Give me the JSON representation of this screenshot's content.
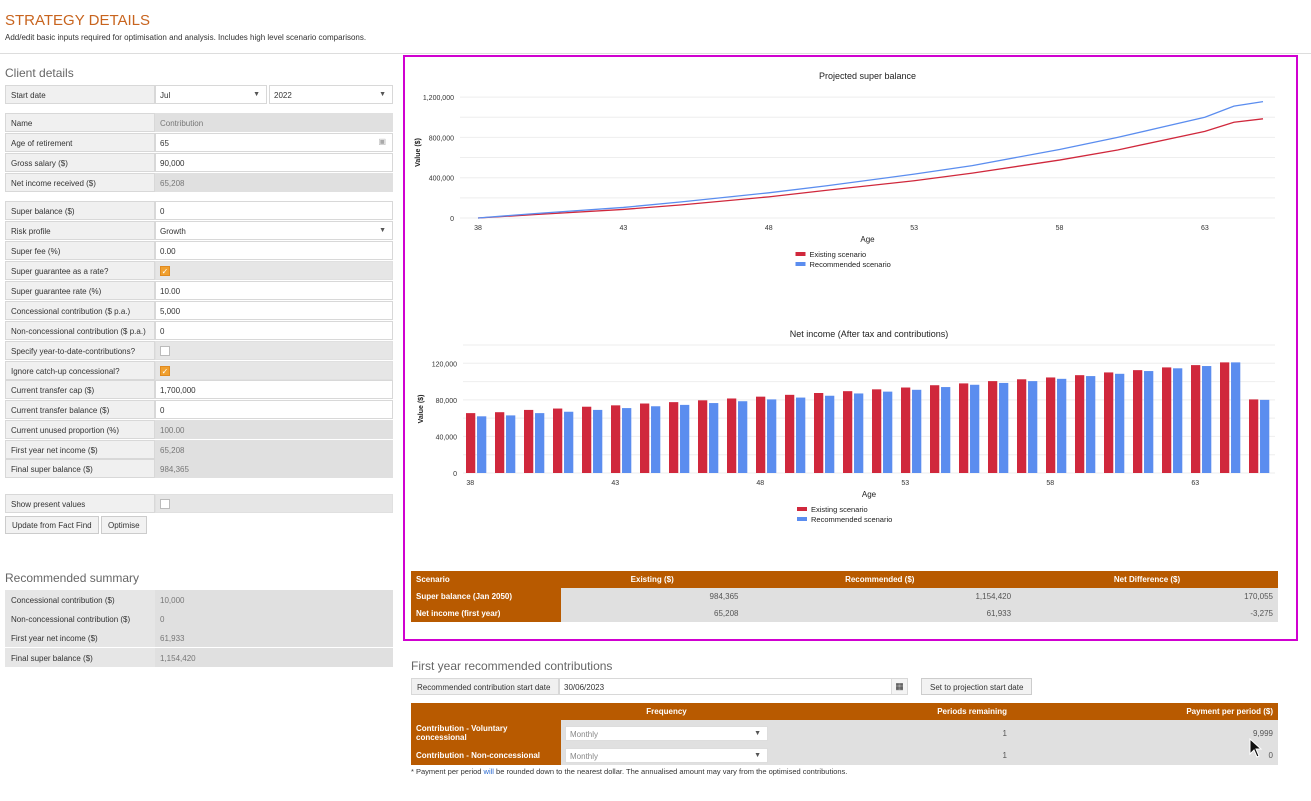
{
  "header": {
    "title": "STRATEGY DETAILS",
    "subtitle": "Add/edit basic inputs required for optimisation and analysis. Includes high level scenario comparisons."
  },
  "client": {
    "heading": "Client details",
    "start_date": {
      "label": "Start date",
      "month": "Jul",
      "year": "2022"
    },
    "rows": [
      {
        "label": "Name",
        "value": "Contribution",
        "type": "ro"
      },
      {
        "label": "Age of retirement",
        "value": "65",
        "type": "input"
      },
      {
        "label": "Gross salary ($)",
        "value": "90,000",
        "type": "input"
      },
      {
        "label": "Net income received ($)",
        "value": "65,208",
        "type": "ro"
      },
      {
        "label": "Super balance ($)",
        "value": "0",
        "type": "input"
      },
      {
        "label": "Risk profile",
        "value": "Growth",
        "type": "select"
      },
      {
        "label": "Super fee (%)",
        "value": "0.00",
        "type": "input"
      },
      {
        "label": "Super guarantee as a rate?",
        "value": true,
        "type": "check"
      },
      {
        "label": "Super guarantee rate (%)",
        "value": "10.00",
        "type": "input"
      },
      {
        "label": "Concessional contribution ($ p.a.)",
        "value": "5,000",
        "type": "input"
      },
      {
        "label": "Non-concessional contribution ($ p.a.)",
        "value": "0",
        "type": "input"
      },
      {
        "label": "Specify year-to-date-contributions?",
        "value": false,
        "type": "check"
      },
      {
        "label": "Ignore catch-up concessional?",
        "value": true,
        "type": "check"
      },
      {
        "label": "Current transfer cap ($)",
        "value": "1,700,000",
        "type": "input"
      },
      {
        "label": "Current transfer balance ($)",
        "value": "0",
        "type": "input"
      },
      {
        "label": "Current unused proportion (%)",
        "value": "100.00",
        "type": "ro"
      },
      {
        "label": "First year net income ($)",
        "value": "65,208",
        "type": "ro"
      },
      {
        "label": "Final super balance ($)",
        "value": "984,365",
        "type": "ro"
      },
      {
        "label": "Show present values",
        "value": false,
        "type": "check"
      }
    ],
    "buttons": {
      "update": "Update from Fact Find",
      "optimise": "Optimise"
    }
  },
  "recommended_summary": {
    "heading": "Recommended summary",
    "rows": [
      {
        "label": "Concessional contribution ($)",
        "value": "10,000"
      },
      {
        "label": "Non-concessional contribution ($)",
        "value": "0"
      },
      {
        "label": "First year net income ($)",
        "value": "61,933"
      },
      {
        "label": "Final super balance ($)",
        "value": "1,154,420"
      }
    ]
  },
  "chart_data": [
    {
      "type": "line",
      "title": "Projected super balance",
      "xlabel": "Age",
      "ylabel": "Value ($)",
      "xlim": [
        38,
        65
      ],
      "ylim": [
        0,
        1200000
      ],
      "xticks": [
        "38",
        "43",
        "48",
        "53",
        "58",
        "63"
      ],
      "yticks": [
        "0",
        "400,000",
        "800,000",
        "1,200,000"
      ],
      "legend": "bottom",
      "x": [
        38,
        40,
        43,
        45,
        48,
        50,
        53,
        55,
        58,
        60,
        63,
        64,
        65
      ],
      "series": [
        {
          "name": "Existing scenario",
          "color": "#d0283c",
          "values": [
            0,
            35000,
            85000,
            130000,
            210000,
            275000,
            370000,
            445000,
            575000,
            675000,
            860000,
            950000,
            984365
          ]
        },
        {
          "name": "Recommended scenario",
          "color": "#5b8def",
          "values": [
            0,
            45000,
            105000,
            160000,
            250000,
            320000,
            435000,
            520000,
            680000,
            800000,
            1000000,
            1110000,
            1154420
          ]
        }
      ]
    },
    {
      "type": "bar",
      "title": "Net income (After tax and contributions)",
      "xlabel": "Age",
      "ylabel": "Value ($)",
      "ylim": [
        0,
        140000
      ],
      "xticks": [
        "38",
        "43",
        "48",
        "53",
        "58",
        "63"
      ],
      "yticks": [
        "0",
        "40,000",
        "80,000",
        "120,000"
      ],
      "legend": "bottom",
      "categories": [
        38,
        39,
        40,
        41,
        42,
        43,
        44,
        45,
        46,
        47,
        48,
        49,
        50,
        51,
        52,
        53,
        54,
        55,
        56,
        57,
        58,
        59,
        60,
        61,
        62,
        63,
        64,
        65
      ],
      "series": [
        {
          "name": "Existing scenario",
          "color": "#d0283c",
          "values": [
            65500,
            66500,
            69000,
            70500,
            72500,
            74000,
            76000,
            77500,
            79500,
            81500,
            83500,
            85500,
            87500,
            89500,
            91500,
            93500,
            96000,
            98000,
            100500,
            102500,
            104500,
            107000,
            110000,
            112500,
            115500,
            118000,
            121000,
            80500
          ]
        },
        {
          "name": "Recommended scenario",
          "color": "#5b8def",
          "values": [
            62000,
            63000,
            65500,
            67000,
            69000,
            71000,
            73000,
            74500,
            76500,
            78500,
            80500,
            82500,
            84500,
            87000,
            89000,
            91000,
            94000,
            96500,
            98500,
            100500,
            103000,
            106000,
            108500,
            111500,
            114500,
            117000,
            121000,
            80000
          ]
        }
      ]
    }
  ],
  "scenario_table": {
    "headers": [
      "Scenario",
      "Existing ($)",
      "Recommended ($)",
      "Net Difference ($)"
    ],
    "rows": [
      [
        "Super balance (Jan 2050)",
        "984,365",
        "1,154,420",
        "170,055"
      ],
      [
        "Net income (first year)",
        "65,208",
        "61,933",
        "-3,275"
      ]
    ]
  },
  "first_year": {
    "heading": "First year recommended contributions",
    "start_label": "Recommended contribution start date",
    "start_value": "30/06/2023",
    "set_button": "Set to projection start date",
    "headers": [
      "",
      "Frequency",
      "Periods remaining",
      "Payment per period ($)"
    ],
    "rows": [
      [
        "Contribution - Voluntary concessional",
        "Monthly",
        "1",
        "9,999"
      ],
      [
        "Contribution - Non-concessional",
        "Monthly",
        "1",
        "0"
      ]
    ],
    "footnote_a": "* Payment per period ",
    "footnote_link": "will",
    "footnote_b": " be rounded down to the nearest dollar. The annualised amount may vary from the optimised contributions."
  }
}
